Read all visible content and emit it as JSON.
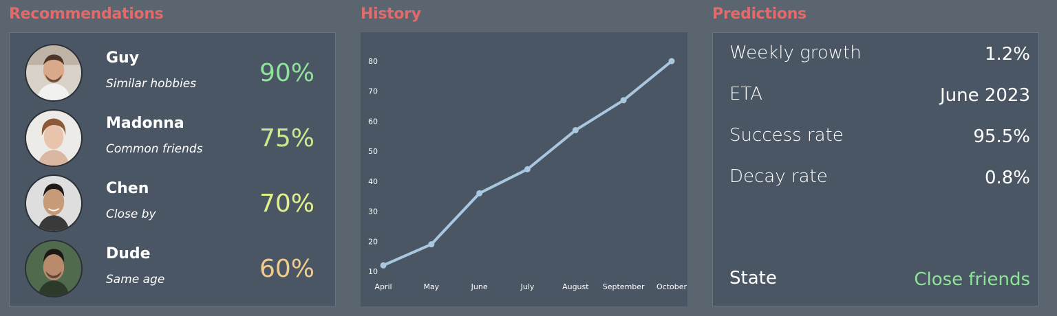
{
  "colors": {
    "title": "#e36a6a",
    "page_bg": "#5b6570",
    "panel_bg": "#4a5663",
    "line": "#a9c7df",
    "score_90": "#8fe39a",
    "score_75": "#c6ec8e",
    "score_70": "#e2f08a",
    "score_60": "#f2cc8f",
    "state_value": "#8fe39a"
  },
  "recommendations": {
    "title": "Recommendations",
    "items": [
      {
        "name": "Guy",
        "reason": "Similar hobbies",
        "score": "90%",
        "color": "#8fe39a",
        "icon": "avatar-guy"
      },
      {
        "name": "Madonna",
        "reason": "Common friends",
        "score": "75%",
        "color": "#c6ec8e",
        "icon": "avatar-madonna"
      },
      {
        "name": "Chen",
        "reason": "Close by",
        "score": "70%",
        "color": "#e2f08a",
        "icon": "avatar-chen"
      },
      {
        "name": "Dude",
        "reason": "Same age",
        "score": "60%",
        "color": "#f2cc8f",
        "icon": "avatar-dude"
      }
    ]
  },
  "history": {
    "title": "History"
  },
  "chart_data": {
    "type": "line",
    "categories": [
      "April",
      "May",
      "June",
      "July",
      "August",
      "September",
      "October"
    ],
    "values": [
      12,
      19,
      36,
      44,
      57,
      67,
      80
    ],
    "yticks": [
      10,
      20,
      30,
      40,
      50,
      60,
      70,
      80
    ],
    "ylim": [
      10,
      80
    ],
    "grid": false,
    "title": "",
    "xlabel": "",
    "ylabel": ""
  },
  "predictions": {
    "title": "Predictions",
    "items": [
      {
        "label": "Weekly growth",
        "value": "1.2%"
      },
      {
        "label": "ETA",
        "value": "June 2023"
      },
      {
        "label": "Success rate",
        "value": "95.5%"
      },
      {
        "label": "Decay rate",
        "value": "0.8%"
      }
    ],
    "state": {
      "label": "State",
      "value": "Close friends"
    }
  }
}
